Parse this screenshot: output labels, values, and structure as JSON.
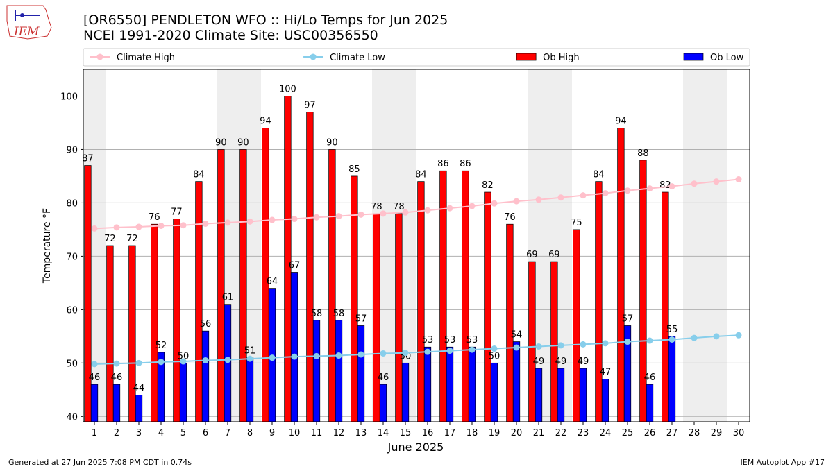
{
  "chart_data": {
    "type": "bar",
    "title": "[OR6550] PENDLETON WFO :: Hi/Lo Temps for Jun 2025",
    "subtitle": "NCEI 1991-2020 Climate Site: USC00356550",
    "xlabel": "June 2025",
    "ylabel": "Temperature °F",
    "x": [
      1,
      2,
      3,
      4,
      5,
      6,
      7,
      8,
      9,
      10,
      11,
      12,
      13,
      14,
      15,
      16,
      17,
      18,
      19,
      20,
      21,
      22,
      23,
      24,
      25,
      26,
      27,
      28,
      29,
      30
    ],
    "xlim": [
      0.5,
      30.5
    ],
    "xticks": [
      1,
      2,
      3,
      4,
      5,
      6,
      7,
      8,
      9,
      10,
      11,
      12,
      13,
      14,
      15,
      16,
      17,
      18,
      19,
      20,
      21,
      22,
      23,
      24,
      25,
      26,
      27,
      28,
      29,
      30
    ],
    "ylim": [
      39,
      105
    ],
    "yticks": [
      40,
      50,
      60,
      70,
      80,
      90,
      100
    ],
    "grid": true,
    "legend": "top",
    "shaded_days": [
      1,
      7,
      8,
      14,
      15,
      21,
      22,
      28,
      29
    ],
    "shade_color": "#eeeeee",
    "series": [
      {
        "name": "Climate High",
        "type": "line",
        "color": "pink",
        "values": [
          75.2,
          75.4,
          75.5,
          75.7,
          75.8,
          76.1,
          76.3,
          76.5,
          76.8,
          77.0,
          77.3,
          77.5,
          77.8,
          78.0,
          78.2,
          78.6,
          79.0,
          79.4,
          79.9,
          80.3,
          80.6,
          81.0,
          81.4,
          81.8,
          82.3,
          82.7,
          83.1,
          83.6,
          84.0,
          84.4
        ]
      },
      {
        "name": "Climate Low",
        "type": "line",
        "color": "skyblue",
        "values": [
          49.8,
          49.9,
          50.0,
          50.2,
          50.3,
          50.5,
          50.6,
          50.8,
          51.0,
          51.2,
          51.3,
          51.4,
          51.6,
          51.8,
          51.9,
          52.1,
          52.3,
          52.5,
          52.7,
          52.9,
          53.1,
          53.3,
          53.5,
          53.7,
          54.0,
          54.2,
          54.4,
          54.7,
          55.0,
          55.2
        ]
      },
      {
        "name": "Ob High",
        "type": "bar",
        "color": "red",
        "values": [
          87,
          72,
          72,
          76,
          77,
          84,
          90,
          90,
          94,
          100,
          97,
          90,
          85,
          78,
          78,
          84,
          86,
          86,
          82,
          76,
          69,
          69,
          75,
          84,
          94,
          88,
          82,
          null,
          null,
          null
        ]
      },
      {
        "name": "Ob Low",
        "type": "bar",
        "color": "blue",
        "values": [
          46,
          46,
          44,
          52,
          50,
          56,
          61,
          51,
          64,
          67,
          58,
          58,
          57,
          46,
          50,
          53,
          53,
          53,
          50,
          54,
          49,
          49,
          49,
          47,
          57,
          46,
          55,
          null,
          null,
          null
        ]
      }
    ]
  },
  "footer_left": "Generated at 27 Jun 2025 7:08 PM CDT in 0.74s",
  "footer_right": "IEM Autoplot App #17",
  "logo_text": "IEM"
}
